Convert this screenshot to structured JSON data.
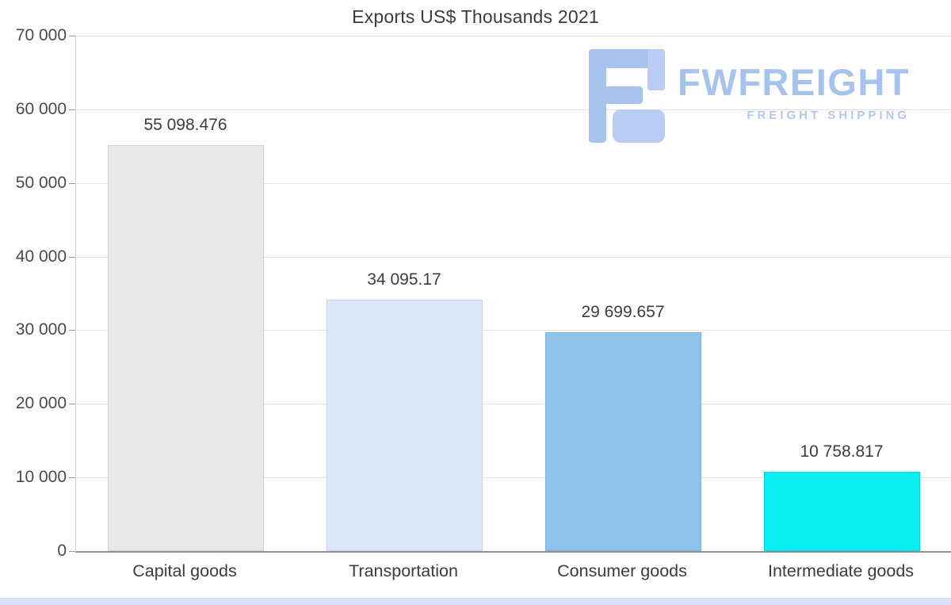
{
  "title": "Exports US$ Thousands 2021",
  "logo": {
    "brand": "FWFREIGHT",
    "tagline": "FREIGHT SHIPPING",
    "color": "#a6c3ee"
  },
  "chart_data": {
    "type": "bar",
    "title": "Exports US$ Thousands 2021",
    "categories": [
      "Capital goods",
      "Transportation",
      "Consumer goods",
      "Intermediate goods"
    ],
    "values": [
      55098.476,
      34095.17,
      29699.657,
      10758.817
    ],
    "value_labels": [
      "55 098.476",
      "34 095.17",
      "29 699.657",
      "10 758.817"
    ],
    "bar_fills": [
      "#e8e8e8",
      "#d9e7f8",
      "#90c1e8",
      "#09eef2"
    ],
    "bar_borders": [
      "#d2d2d2",
      "#c3d8f0",
      "#7db3de",
      "#00d8dc"
    ],
    "xlabel": "",
    "ylabel": "",
    "ylim": [
      0,
      70000
    ],
    "yticks": [
      {
        "value": 0,
        "label": "0"
      },
      {
        "value": 10000,
        "label": "10 000"
      },
      {
        "value": 20000,
        "label": "20 000"
      },
      {
        "value": 30000,
        "label": "30 000"
      },
      {
        "value": 40000,
        "label": "40 000"
      },
      {
        "value": 50000,
        "label": "50 000"
      },
      {
        "value": 60000,
        "label": "60 000"
      },
      {
        "value": 70000,
        "label": "70 000"
      }
    ],
    "grid": true,
    "legend": false
  }
}
